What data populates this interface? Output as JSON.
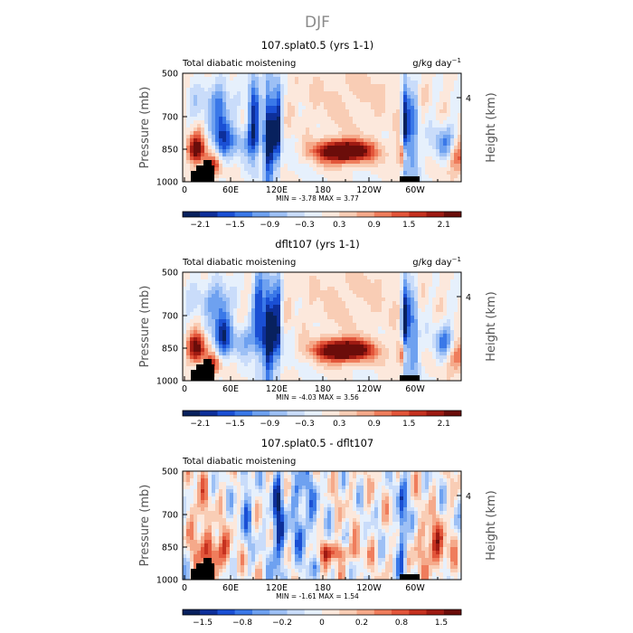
{
  "figure_title": "DJF",
  "colors": {
    "palette": [
      "#08215e",
      "#0d2f9a",
      "#1a4fd4",
      "#3a78e8",
      "#6ea1f0",
      "#9dc0f5",
      "#c9dcfa",
      "#e6f0fc",
      "#fce8dc",
      "#f9cdb5",
      "#f5a98a",
      "#ef7d5c",
      "#e2553a",
      "#c5311f",
      "#9e1a12",
      "#6b0d0a"
    ],
    "land": "#000000"
  },
  "chart_data": [
    {
      "type": "heatmap",
      "title": "107.splat0.5 (yrs 1-1)",
      "left_label": "Total diabatic moistening",
      "right_label": "g/kg day",
      "right_label_exp": "−1",
      "ylabel": "Pressure (mb)",
      "ylabel_right": "Height (km)",
      "yticks": [
        "500",
        "700",
        "850",
        "1000"
      ],
      "yticks_right": [
        "4"
      ],
      "xticks": [
        "0",
        "60E",
        "120E",
        "180",
        "120W",
        "60W"
      ],
      "min": -3.78,
      "max": 3.77,
      "stats": "MIN =   -3.78   MAX =   3.77",
      "colorbar_labels": [
        "−2.1",
        "−1.5",
        "−0.9",
        "−0.3",
        "0.3",
        "0.9",
        "1.5",
        "2.1"
      ],
      "variant": 0
    },
    {
      "type": "heatmap",
      "title": "dflt107 (yrs 1-1)",
      "left_label": "Total diabatic moistening",
      "right_label": "g/kg day",
      "right_label_exp": "−1",
      "ylabel": "Pressure (mb)",
      "ylabel_right": "Height (km)",
      "yticks": [
        "500",
        "700",
        "850",
        "1000"
      ],
      "yticks_right": [
        "4"
      ],
      "xticks": [
        "0",
        "60E",
        "120E",
        "180",
        "120W",
        "60W"
      ],
      "min": -4.03,
      "max": 3.56,
      "stats": "MIN =   -4.03   MAX =   3.56",
      "colorbar_labels": [
        "−2.1",
        "−1.5",
        "−0.9",
        "−0.3",
        "0.3",
        "0.9",
        "1.5",
        "2.1"
      ],
      "variant": 1
    },
    {
      "type": "heatmap",
      "title": "107.splat0.5 - dflt107",
      "left_label": "Total diabatic moistening",
      "right_label": "",
      "right_label_exp": "",
      "ylabel": "Pressure (mb)",
      "ylabel_right": "Height (km)",
      "yticks": [
        "500",
        "700",
        "850",
        "1000"
      ],
      "yticks_right": [
        "4"
      ],
      "xticks": [
        "0",
        "60E",
        "120E",
        "180",
        "120W",
        "60W"
      ],
      "min": -1.61,
      "max": 1.54,
      "stats": "MIN =   -1.61   MAX =   1.54",
      "colorbar_labels": [
        "−1.5",
        "−0.8",
        "−0.2",
        "0",
        "0.2",
        "0.8",
        "1.5"
      ],
      "variant": 2
    }
  ]
}
